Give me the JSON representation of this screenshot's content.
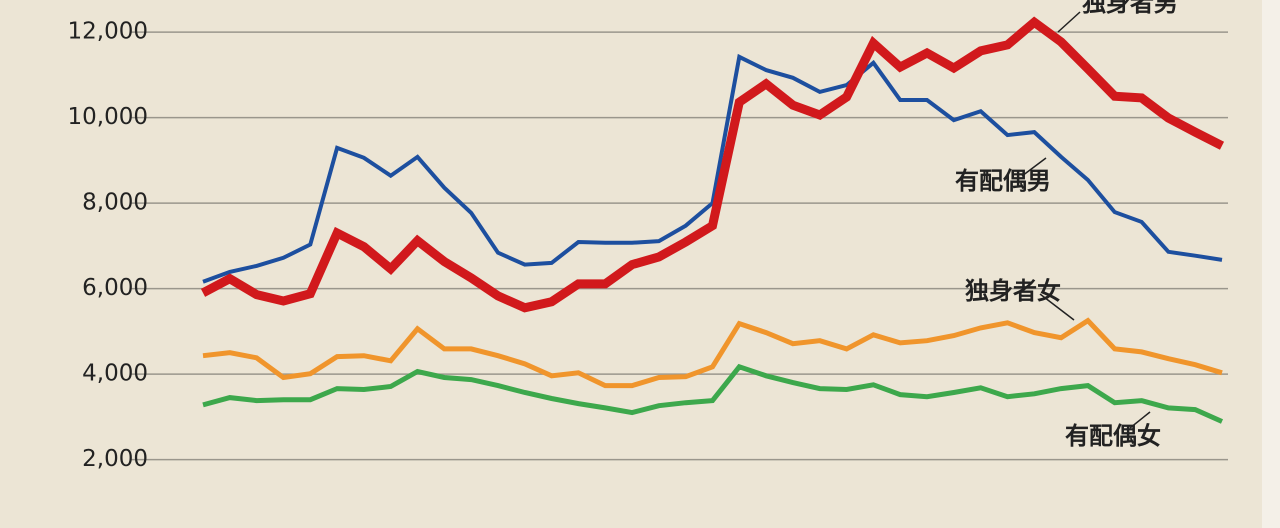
{
  "chart_data": {
    "type": "line",
    "categories": [
      null,
      null,
      null,
      null,
      null,
      null,
      null,
      null,
      null,
      null,
      null,
      null,
      null,
      null,
      null,
      null,
      null,
      null,
      null,
      null,
      null,
      null,
      null,
      null,
      null,
      null,
      null,
      null,
      null,
      null,
      null,
      null,
      null,
      null,
      null,
      null,
      null,
      null,
      null
    ],
    "series": [
      {
        "name": "有配偶男",
        "color": "#1d4f9f",
        "width": 4,
        "values": [
          6160,
          6390,
          6530,
          6720,
          7030,
          9290,
          9060,
          8640,
          9080,
          8360,
          7770,
          6840,
          6560,
          6600,
          7090,
          7070,
          7070,
          7110,
          7470,
          8000,
          11420,
          11110,
          10930,
          10600,
          10760,
          11280,
          10410,
          10410,
          9940,
          10150,
          9590,
          9660,
          9080,
          8540,
          7790,
          7560,
          6860,
          6770,
          6670
        ]
      },
      {
        "name": "独身者男",
        "color": "#d1191c",
        "width": 9,
        "values": [
          5900,
          6230,
          5860,
          5710,
          5880,
          7300,
          6980,
          6460,
          7120,
          6630,
          6250,
          5830,
          5550,
          5690,
          6110,
          6110,
          6560,
          6740,
          7090,
          7470,
          10360,
          10790,
          10290,
          10060,
          10480,
          11740,
          11180,
          11510,
          11160,
          11560,
          11700,
          12230,
          11770,
          11140,
          10500,
          10460,
          9990,
          9660,
          9340
        ]
      },
      {
        "name": "独身者女",
        "color": "#f0952c",
        "width": 5,
        "values": [
          4430,
          4500,
          4380,
          3920,
          4010,
          4410,
          4430,
          4310,
          5060,
          4590,
          4590,
          4430,
          4240,
          3960,
          4030,
          3730,
          3730,
          3920,
          3940,
          4170,
          5180,
          4970,
          4710,
          4780,
          4590,
          4920,
          4730,
          4780,
          4900,
          5080,
          5200,
          4970,
          4850,
          5250,
          4590,
          4520,
          4360,
          4220,
          4030
        ]
      },
      {
        "name": "有配偶女",
        "color": "#3da84c",
        "width": 5,
        "values": [
          3280,
          3450,
          3380,
          3400,
          3400,
          3660,
          3640,
          3710,
          4060,
          3920,
          3870,
          3730,
          3570,
          3430,
          3310,
          3210,
          3100,
          3260,
          3330,
          3380,
          4170,
          3960,
          3800,
          3660,
          3640,
          3750,
          3520,
          3470,
          3570,
          3680,
          3470,
          3540,
          3660,
          3730,
          3330,
          3380,
          3210,
          3170,
          2890
        ]
      }
    ],
    "ylim": [
      400,
      12750
    ],
    "yticks": [
      {
        "value": 2000,
        "label": "2,000"
      },
      {
        "value": 4000,
        "label": "4,000"
      },
      {
        "value": 6000,
        "label": "6,000"
      },
      {
        "value": 8000,
        "label": "8,000"
      },
      {
        "value": 10000,
        "label": "10,000"
      },
      {
        "value": 12000,
        "label": "12,000"
      }
    ],
    "grid": true
  }
}
